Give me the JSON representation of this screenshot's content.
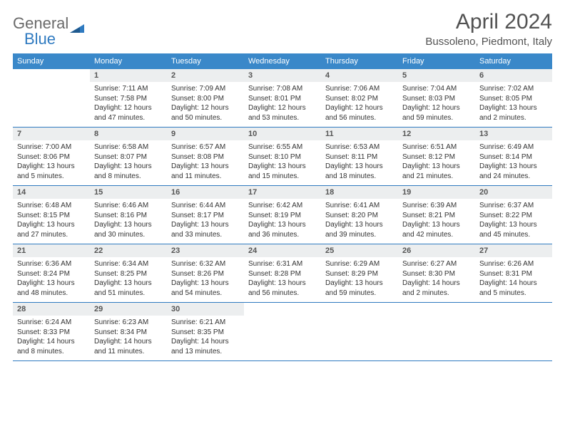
{
  "logo": {
    "text1": "General",
    "text2": "Blue"
  },
  "title": "April 2024",
  "location": "Bussoleno, Piedmont, Italy",
  "colors": {
    "header_bg": "#3a88c9",
    "header_text": "#ffffff",
    "daynum_bg": "#eceeef",
    "daynum_text": "#555555",
    "border": "#2f7ac0",
    "logo_gray": "#6a6a6a",
    "logo_blue": "#2f7ac0",
    "title_color": "#525252"
  },
  "fonts": {
    "title_size": 30,
    "location_size": 15,
    "weekday_size": 11,
    "daynum_size": 11,
    "body_size": 10
  },
  "weekdays": [
    "Sunday",
    "Monday",
    "Tuesday",
    "Wednesday",
    "Thursday",
    "Friday",
    "Saturday"
  ],
  "first_weekday_index": 1,
  "days": [
    {
      "n": 1,
      "sunrise": "7:11 AM",
      "sunset": "7:58 PM",
      "daylight": "12 hours and 47 minutes."
    },
    {
      "n": 2,
      "sunrise": "7:09 AM",
      "sunset": "8:00 PM",
      "daylight": "12 hours and 50 minutes."
    },
    {
      "n": 3,
      "sunrise": "7:08 AM",
      "sunset": "8:01 PM",
      "daylight": "12 hours and 53 minutes."
    },
    {
      "n": 4,
      "sunrise": "7:06 AM",
      "sunset": "8:02 PM",
      "daylight": "12 hours and 56 minutes."
    },
    {
      "n": 5,
      "sunrise": "7:04 AM",
      "sunset": "8:03 PM",
      "daylight": "12 hours and 59 minutes."
    },
    {
      "n": 6,
      "sunrise": "7:02 AM",
      "sunset": "8:05 PM",
      "daylight": "13 hours and 2 minutes."
    },
    {
      "n": 7,
      "sunrise": "7:00 AM",
      "sunset": "8:06 PM",
      "daylight": "13 hours and 5 minutes."
    },
    {
      "n": 8,
      "sunrise": "6:58 AM",
      "sunset": "8:07 PM",
      "daylight": "13 hours and 8 minutes."
    },
    {
      "n": 9,
      "sunrise": "6:57 AM",
      "sunset": "8:08 PM",
      "daylight": "13 hours and 11 minutes."
    },
    {
      "n": 10,
      "sunrise": "6:55 AM",
      "sunset": "8:10 PM",
      "daylight": "13 hours and 15 minutes."
    },
    {
      "n": 11,
      "sunrise": "6:53 AM",
      "sunset": "8:11 PM",
      "daylight": "13 hours and 18 minutes."
    },
    {
      "n": 12,
      "sunrise": "6:51 AM",
      "sunset": "8:12 PM",
      "daylight": "13 hours and 21 minutes."
    },
    {
      "n": 13,
      "sunrise": "6:49 AM",
      "sunset": "8:14 PM",
      "daylight": "13 hours and 24 minutes."
    },
    {
      "n": 14,
      "sunrise": "6:48 AM",
      "sunset": "8:15 PM",
      "daylight": "13 hours and 27 minutes."
    },
    {
      "n": 15,
      "sunrise": "6:46 AM",
      "sunset": "8:16 PM",
      "daylight": "13 hours and 30 minutes."
    },
    {
      "n": 16,
      "sunrise": "6:44 AM",
      "sunset": "8:17 PM",
      "daylight": "13 hours and 33 minutes."
    },
    {
      "n": 17,
      "sunrise": "6:42 AM",
      "sunset": "8:19 PM",
      "daylight": "13 hours and 36 minutes."
    },
    {
      "n": 18,
      "sunrise": "6:41 AM",
      "sunset": "8:20 PM",
      "daylight": "13 hours and 39 minutes."
    },
    {
      "n": 19,
      "sunrise": "6:39 AM",
      "sunset": "8:21 PM",
      "daylight": "13 hours and 42 minutes."
    },
    {
      "n": 20,
      "sunrise": "6:37 AM",
      "sunset": "8:22 PM",
      "daylight": "13 hours and 45 minutes."
    },
    {
      "n": 21,
      "sunrise": "6:36 AM",
      "sunset": "8:24 PM",
      "daylight": "13 hours and 48 minutes."
    },
    {
      "n": 22,
      "sunrise": "6:34 AM",
      "sunset": "8:25 PM",
      "daylight": "13 hours and 51 minutes."
    },
    {
      "n": 23,
      "sunrise": "6:32 AM",
      "sunset": "8:26 PM",
      "daylight": "13 hours and 54 minutes."
    },
    {
      "n": 24,
      "sunrise": "6:31 AM",
      "sunset": "8:28 PM",
      "daylight": "13 hours and 56 minutes."
    },
    {
      "n": 25,
      "sunrise": "6:29 AM",
      "sunset": "8:29 PM",
      "daylight": "13 hours and 59 minutes."
    },
    {
      "n": 26,
      "sunrise": "6:27 AM",
      "sunset": "8:30 PM",
      "daylight": "14 hours and 2 minutes."
    },
    {
      "n": 27,
      "sunrise": "6:26 AM",
      "sunset": "8:31 PM",
      "daylight": "14 hours and 5 minutes."
    },
    {
      "n": 28,
      "sunrise": "6:24 AM",
      "sunset": "8:33 PM",
      "daylight": "14 hours and 8 minutes."
    },
    {
      "n": 29,
      "sunrise": "6:23 AM",
      "sunset": "8:34 PM",
      "daylight": "14 hours and 11 minutes."
    },
    {
      "n": 30,
      "sunrise": "6:21 AM",
      "sunset": "8:35 PM",
      "daylight": "14 hours and 13 minutes."
    }
  ],
  "labels": {
    "sunrise": "Sunrise:",
    "sunset": "Sunset:",
    "daylight": "Daylight:"
  }
}
